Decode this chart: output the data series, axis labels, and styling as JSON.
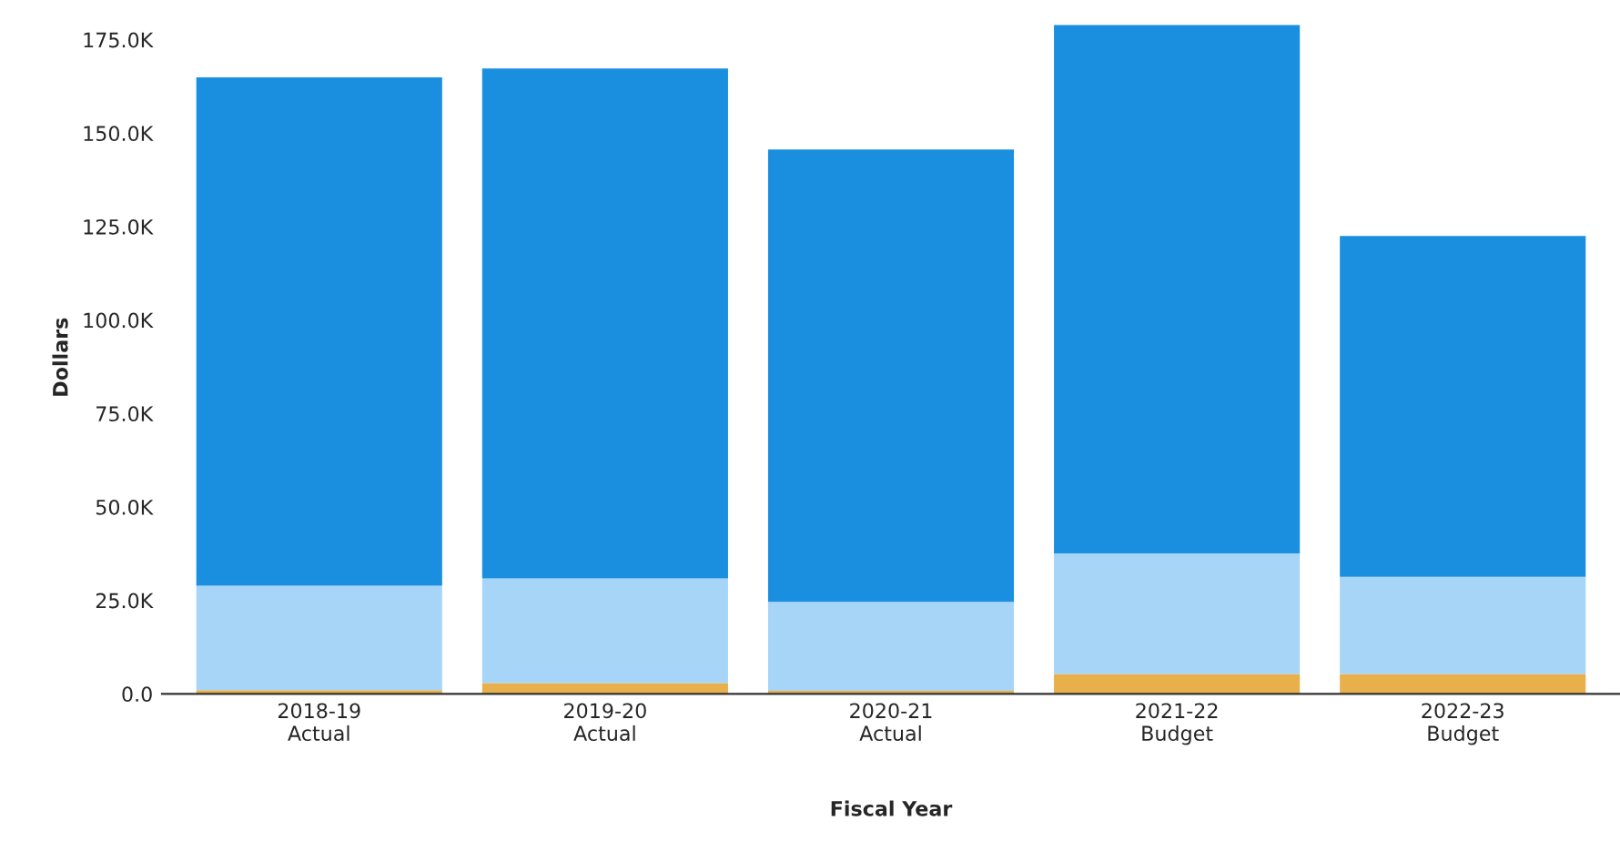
{
  "chart_data": {
    "type": "bar",
    "stacked": true,
    "xlabel": "Fiscal Year",
    "ylabel": "Dollars",
    "categories": [
      "2018-19\nActual",
      "2019-20\nActual",
      "2020-21\nActual",
      "2021-22\nBudget",
      "2022-23\nBudget"
    ],
    "series": [
      {
        "color": "#e8b04a",
        "values": [
          1000,
          2900,
          800,
          5300,
          5300
        ]
      },
      {
        "color": "#a6d5f7",
        "values": [
          27900,
          28000,
          23800,
          32300,
          26000
        ]
      },
      {
        "color": "#1a8fe0",
        "values": [
          136000,
          136400,
          121000,
          141300,
          91200
        ]
      }
    ],
    "ylim": [
      0,
      180000
    ],
    "yticks": [
      {
        "value": 0,
        "label": "0.0"
      },
      {
        "value": 25000,
        "label": "25.0K"
      },
      {
        "value": 50000,
        "label": "50.0K"
      },
      {
        "value": 75000,
        "label": "75.0K"
      },
      {
        "value": 100000,
        "label": "100.0K"
      },
      {
        "value": 125000,
        "label": "125.0K"
      },
      {
        "value": 150000,
        "label": "150.0K"
      },
      {
        "value": 175000,
        "label": "175.0K"
      }
    ],
    "grid": false
  }
}
